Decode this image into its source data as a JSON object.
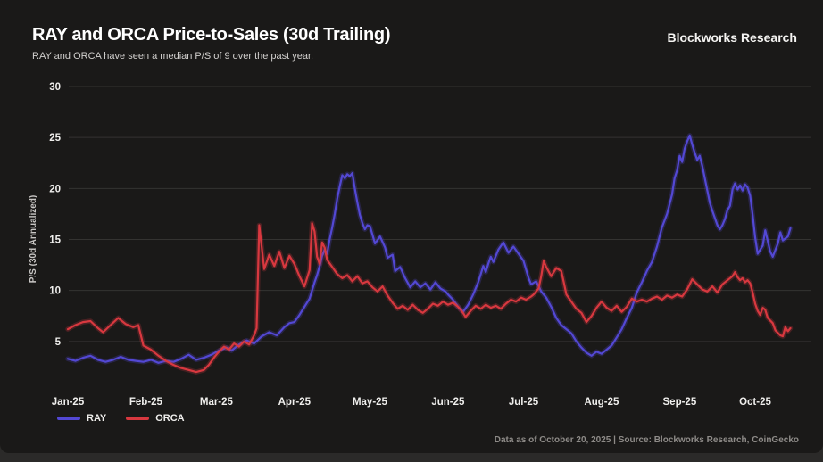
{
  "header": {
    "title": "RAY and ORCA Price-to-Sales (30d Trailing)",
    "subtitle": "RAY and ORCA have seen a median P/S of 9 over the past year.",
    "brand": "Blockworks Research"
  },
  "footer": {
    "source_note": "Data as of October 20, 2025 | Source: Blockworks Research, CoinGecko"
  },
  "chart_data": {
    "type": "line",
    "title": "RAY and ORCA Price-to-Sales (30d Trailing)",
    "xlabel": "",
    "ylabel": "P/S (30d Annualized)",
    "ylim": [
      0,
      30
    ],
    "y_ticks": [
      5,
      10,
      15,
      20,
      25,
      30
    ],
    "x_tick_labels": [
      "Jan-25",
      "Feb-25",
      "Mar-25",
      "Apr-25",
      "May-25",
      "Jun-25",
      "Jul-25",
      "Aug-25",
      "Sep-25",
      "Oct-25"
    ],
    "x_tick_days": [
      0,
      31,
      59,
      90,
      120,
      151,
      181,
      212,
      243,
      273
    ],
    "x_domain_days": [
      0,
      295
    ],
    "grid": "horizontal",
    "legend_position": "bottom-left",
    "background": "#1a1918",
    "gridline_color": "#343331",
    "series": [
      {
        "name": "RAY",
        "color": "#5348d4",
        "points": [
          [
            0,
            3.3
          ],
          [
            3,
            3.1
          ],
          [
            6,
            3.4
          ],
          [
            9,
            3.6
          ],
          [
            12,
            3.2
          ],
          [
            15,
            3.0
          ],
          [
            18,
            3.2
          ],
          [
            21,
            3.5
          ],
          [
            24,
            3.2
          ],
          [
            27,
            3.1
          ],
          [
            30,
            3.0
          ],
          [
            33,
            3.2
          ],
          [
            36,
            2.9
          ],
          [
            39,
            3.1
          ],
          [
            42,
            3.0
          ],
          [
            45,
            3.3
          ],
          [
            48,
            3.7
          ],
          [
            51,
            3.2
          ],
          [
            54,
            3.4
          ],
          [
            57,
            3.7
          ],
          [
            60,
            4.1
          ],
          [
            63,
            4.4
          ],
          [
            65,
            4.1
          ],
          [
            68,
            4.7
          ],
          [
            71,
            5.1
          ],
          [
            74,
            4.8
          ],
          [
            77,
            5.5
          ],
          [
            80,
            5.9
          ],
          [
            83,
            5.6
          ],
          [
            86,
            6.4
          ],
          [
            88,
            6.8
          ],
          [
            90,
            6.9
          ],
          [
            92,
            7.6
          ],
          [
            94,
            8.4
          ],
          [
            96,
            9.2
          ],
          [
            97,
            10.0
          ],
          [
            98,
            10.8
          ],
          [
            99,
            11.5
          ],
          [
            100,
            12.4
          ],
          [
            101,
            13.4
          ],
          [
            102,
            14.0
          ],
          [
            103,
            13.6
          ],
          [
            104,
            15.0
          ],
          [
            105,
            16.2
          ],
          [
            106,
            17.5
          ],
          [
            107,
            19.0
          ],
          [
            108,
            20.2
          ],
          [
            109,
            21.3
          ],
          [
            110,
            21.0
          ],
          [
            111,
            21.4
          ],
          [
            112,
            21.2
          ],
          [
            113,
            21.5
          ],
          [
            114,
            20.0
          ],
          [
            115,
            18.6
          ],
          [
            116,
            17.4
          ],
          [
            117,
            16.6
          ],
          [
            118,
            16.0
          ],
          [
            119,
            16.4
          ],
          [
            120,
            16.3
          ],
          [
            122,
            14.6
          ],
          [
            124,
            15.3
          ],
          [
            126,
            14.2
          ],
          [
            127,
            13.2
          ],
          [
            129,
            13.5
          ],
          [
            130,
            11.9
          ],
          [
            132,
            12.3
          ],
          [
            134,
            11.2
          ],
          [
            136,
            10.3
          ],
          [
            138,
            10.9
          ],
          [
            140,
            10.3
          ],
          [
            142,
            10.7
          ],
          [
            144,
            10.1
          ],
          [
            146,
            10.8
          ],
          [
            148,
            10.2
          ],
          [
            150,
            9.9
          ],
          [
            151,
            9.6
          ],
          [
            153,
            9.1
          ],
          [
            155,
            8.4
          ],
          [
            157,
            7.9
          ],
          [
            159,
            8.6
          ],
          [
            161,
            9.6
          ],
          [
            163,
            10.8
          ],
          [
            164,
            11.6
          ],
          [
            165,
            12.4
          ],
          [
            166,
            11.8
          ],
          [
            167,
            12.6
          ],
          [
            168,
            13.3
          ],
          [
            169,
            12.8
          ],
          [
            171,
            14.0
          ],
          [
            173,
            14.7
          ],
          [
            175,
            13.7
          ],
          [
            177,
            14.3
          ],
          [
            179,
            13.6
          ],
          [
            181,
            12.9
          ],
          [
            183,
            11.2
          ],
          [
            184,
            10.6
          ],
          [
            186,
            10.9
          ],
          [
            188,
            9.9
          ],
          [
            190,
            9.3
          ],
          [
            192,
            8.4
          ],
          [
            194,
            7.3
          ],
          [
            196,
            6.6
          ],
          [
            198,
            6.2
          ],
          [
            200,
            5.8
          ],
          [
            202,
            5.0
          ],
          [
            204,
            4.4
          ],
          [
            206,
            3.9
          ],
          [
            208,
            3.6
          ],
          [
            210,
            4.0
          ],
          [
            212,
            3.8
          ],
          [
            214,
            4.2
          ],
          [
            216,
            4.6
          ],
          [
            218,
            5.4
          ],
          [
            220,
            6.2
          ],
          [
            222,
            7.3
          ],
          [
            224,
            8.3
          ],
          [
            226,
            9.8
          ],
          [
            228,
            10.8
          ],
          [
            230,
            11.9
          ],
          [
            232,
            12.8
          ],
          [
            234,
            14.3
          ],
          [
            236,
            16.2
          ],
          [
            238,
            17.5
          ],
          [
            240,
            19.4
          ],
          [
            241,
            21.0
          ],
          [
            242,
            21.8
          ],
          [
            243,
            23.2
          ],
          [
            244,
            22.6
          ],
          [
            245,
            23.9
          ],
          [
            246,
            24.6
          ],
          [
            247,
            25.2
          ],
          [
            248,
            24.3
          ],
          [
            249,
            23.5
          ],
          [
            250,
            22.8
          ],
          [
            251,
            23.2
          ],
          [
            252,
            22.2
          ],
          [
            253,
            21.0
          ],
          [
            254,
            19.8
          ],
          [
            255,
            18.6
          ],
          [
            256,
            17.8
          ],
          [
            257,
            17.1
          ],
          [
            258,
            16.4
          ],
          [
            259,
            16.0
          ],
          [
            260,
            16.4
          ],
          [
            261,
            17.0
          ],
          [
            262,
            17.9
          ],
          [
            263,
            18.3
          ],
          [
            264,
            19.9
          ],
          [
            265,
            20.5
          ],
          [
            266,
            19.9
          ],
          [
            267,
            20.3
          ],
          [
            268,
            19.8
          ],
          [
            269,
            20.4
          ],
          [
            270,
            20.1
          ],
          [
            271,
            19.3
          ],
          [
            272,
            17.4
          ],
          [
            273,
            15.2
          ],
          [
            274,
            13.6
          ],
          [
            276,
            14.4
          ],
          [
            277,
            15.9
          ],
          [
            279,
            13.8
          ],
          [
            280,
            13.3
          ],
          [
            282,
            14.6
          ],
          [
            283,
            15.7
          ],
          [
            284,
            14.9
          ],
          [
            286,
            15.3
          ],
          [
            287,
            16.1
          ]
        ]
      },
      {
        "name": "ORCA",
        "color": "#d8383f",
        "points": [
          [
            0,
            6.2
          ],
          [
            3,
            6.6
          ],
          [
            6,
            6.9
          ],
          [
            9,
            7.0
          ],
          [
            12,
            6.3
          ],
          [
            14,
            5.9
          ],
          [
            17,
            6.6
          ],
          [
            20,
            7.3
          ],
          [
            23,
            6.7
          ],
          [
            26,
            6.4
          ],
          [
            28,
            6.6
          ],
          [
            30,
            4.6
          ],
          [
            33,
            4.2
          ],
          [
            36,
            3.6
          ],
          [
            39,
            3.1
          ],
          [
            42,
            2.7
          ],
          [
            45,
            2.4
          ],
          [
            48,
            2.2
          ],
          [
            51,
            2.0
          ],
          [
            54,
            2.2
          ],
          [
            56,
            2.7
          ],
          [
            58,
            3.4
          ],
          [
            60,
            4.0
          ],
          [
            62,
            4.5
          ],
          [
            64,
            4.2
          ],
          [
            66,
            4.8
          ],
          [
            68,
            4.5
          ],
          [
            70,
            5.0
          ],
          [
            72,
            4.7
          ],
          [
            74,
            5.6
          ],
          [
            75,
            6.3
          ],
          [
            76,
            16.4
          ],
          [
            78,
            12.1
          ],
          [
            80,
            13.5
          ],
          [
            82,
            12.4
          ],
          [
            84,
            13.8
          ],
          [
            86,
            12.2
          ],
          [
            88,
            13.4
          ],
          [
            90,
            12.6
          ],
          [
            92,
            11.4
          ],
          [
            94,
            10.4
          ],
          [
            96,
            12.0
          ],
          [
            97,
            16.6
          ],
          [
            98,
            15.8
          ],
          [
            99,
            13.3
          ],
          [
            100,
            12.6
          ],
          [
            101,
            14.7
          ],
          [
            102,
            14.2
          ],
          [
            103,
            13.0
          ],
          [
            105,
            12.3
          ],
          [
            107,
            11.6
          ],
          [
            109,
            11.2
          ],
          [
            111,
            11.5
          ],
          [
            113,
            10.9
          ],
          [
            115,
            11.4
          ],
          [
            117,
            10.7
          ],
          [
            119,
            10.9
          ],
          [
            121,
            10.3
          ],
          [
            123,
            9.9
          ],
          [
            125,
            10.4
          ],
          [
            127,
            9.5
          ],
          [
            129,
            8.8
          ],
          [
            131,
            8.2
          ],
          [
            133,
            8.5
          ],
          [
            135,
            8.1
          ],
          [
            137,
            8.6
          ],
          [
            139,
            8.1
          ],
          [
            141,
            7.8
          ],
          [
            143,
            8.2
          ],
          [
            145,
            8.7
          ],
          [
            147,
            8.5
          ],
          [
            149,
            8.9
          ],
          [
            151,
            8.6
          ],
          [
            153,
            8.8
          ],
          [
            155,
            8.4
          ],
          [
            157,
            7.8
          ],
          [
            158,
            7.4
          ],
          [
            160,
            8.0
          ],
          [
            162,
            8.5
          ],
          [
            164,
            8.2
          ],
          [
            166,
            8.6
          ],
          [
            168,
            8.3
          ],
          [
            170,
            8.5
          ],
          [
            172,
            8.2
          ],
          [
            174,
            8.7
          ],
          [
            176,
            9.1
          ],
          [
            178,
            8.9
          ],
          [
            180,
            9.3
          ],
          [
            182,
            9.1
          ],
          [
            184,
            9.4
          ],
          [
            185,
            9.6
          ],
          [
            187,
            10.2
          ],
          [
            188,
            11.4
          ],
          [
            189,
            12.9
          ],
          [
            190,
            12.3
          ],
          [
            192,
            11.4
          ],
          [
            194,
            12.2
          ],
          [
            196,
            11.9
          ],
          [
            197,
            10.8
          ],
          [
            198,
            9.6
          ],
          [
            200,
            8.9
          ],
          [
            202,
            8.2
          ],
          [
            204,
            7.8
          ],
          [
            206,
            6.9
          ],
          [
            208,
            7.5
          ],
          [
            210,
            8.3
          ],
          [
            212,
            8.9
          ],
          [
            214,
            8.3
          ],
          [
            216,
            8.0
          ],
          [
            218,
            8.5
          ],
          [
            220,
            7.9
          ],
          [
            222,
            8.4
          ],
          [
            224,
            9.2
          ],
          [
            226,
            8.9
          ],
          [
            228,
            9.1
          ],
          [
            230,
            8.9
          ],
          [
            232,
            9.2
          ],
          [
            234,
            9.4
          ],
          [
            236,
            9.1
          ],
          [
            238,
            9.5
          ],
          [
            240,
            9.3
          ],
          [
            242,
            9.6
          ],
          [
            244,
            9.4
          ],
          [
            246,
            10.1
          ],
          [
            248,
            11.1
          ],
          [
            250,
            10.6
          ],
          [
            252,
            10.1
          ],
          [
            254,
            9.9
          ],
          [
            256,
            10.4
          ],
          [
            258,
            9.8
          ],
          [
            260,
            10.6
          ],
          [
            262,
            11.0
          ],
          [
            264,
            11.4
          ],
          [
            265,
            11.8
          ],
          [
            266,
            11.3
          ],
          [
            267,
            11.0
          ],
          [
            268,
            11.2
          ],
          [
            269,
            10.8
          ],
          [
            270,
            11.0
          ],
          [
            271,
            10.7
          ],
          [
            272,
            9.8
          ],
          [
            273,
            8.7
          ],
          [
            274,
            8.0
          ],
          [
            275,
            7.6
          ],
          [
            276,
            8.3
          ],
          [
            277,
            8.1
          ],
          [
            278,
            7.3
          ],
          [
            280,
            6.8
          ],
          [
            281,
            6.1
          ],
          [
            283,
            5.6
          ],
          [
            284,
            5.5
          ],
          [
            285,
            6.4
          ],
          [
            286,
            6.0
          ],
          [
            287,
            6.3
          ]
        ]
      }
    ]
  }
}
